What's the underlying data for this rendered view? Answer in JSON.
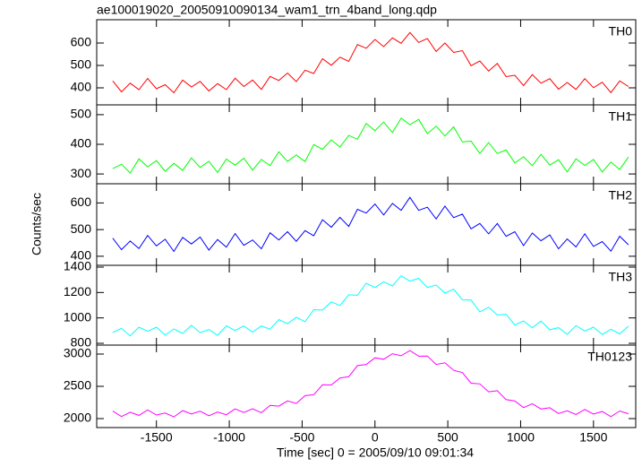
{
  "chart_data": {
    "type": "line",
    "title": "ae100019020_20050910090134_wam1_trn_4band_long.qdp",
    "xlabel": "Time [sec] 0 = 2005/09/10 09:01:34",
    "ylabel": "Counts/sec",
    "xlim": [
      -1910,
      1790
    ],
    "xticks": [
      -1500,
      -1000,
      -500,
      0,
      500,
      1000,
      1500
    ],
    "x": [
      -1800,
      -1740,
      -1680,
      -1620,
      -1560,
      -1500,
      -1440,
      -1380,
      -1320,
      -1260,
      -1200,
      -1140,
      -1080,
      -1020,
      -960,
      -900,
      -840,
      -780,
      -720,
      -660,
      -600,
      -540,
      -480,
      -420,
      -360,
      -300,
      -240,
      -180,
      -120,
      -60,
      0,
      60,
      120,
      180,
      240,
      300,
      360,
      420,
      480,
      540,
      600,
      660,
      720,
      780,
      840,
      900,
      960,
      1020,
      1080,
      1140,
      1200,
      1260,
      1320,
      1380,
      1440,
      1500,
      1560,
      1620,
      1680,
      1740
    ],
    "panels": [
      {
        "name": "TH0",
        "color": "#ff0000",
        "ylim": [
          324,
          704
        ],
        "yticks": [
          400,
          500,
          600
        ],
        "values": [
          431,
          382,
          421,
          392,
          442,
          396,
          414,
          378,
          435,
          404,
          429,
          386,
          419,
          392,
          443,
          406,
          435,
          393,
          451,
          433,
          466,
          428,
          479,
          464,
          530,
          501,
          537,
          518,
          593,
          577,
          616,
          584,
          623,
          599,
          647,
          603,
          620,
          562,
          600,
          558,
          566,
          499,
          520,
          475,
          509,
          450,
          456,
          410,
          459,
          421,
          441,
          394,
          424,
          393,
          441,
          401,
          425,
          379,
          431,
          406
        ]
      },
      {
        "name": "TH1",
        "color": "#00ff00",
        "ylim": [
          267,
          533
        ],
        "yticks": [
          300,
          400,
          500
        ],
        "values": [
          318,
          333,
          303,
          351,
          324,
          345,
          309,
          336,
          312,
          354,
          322,
          343,
          305,
          350,
          330,
          353,
          313,
          349,
          328,
          375,
          342,
          364,
          342,
          399,
          383,
          415,
          391,
          430,
          417,
          470,
          446,
          475,
          440,
          488,
          466,
          484,
          436,
          461,
          428,
          459,
          408,
          411,
          369,
          406,
          369,
          381,
          337,
          358,
          328,
          366,
          330,
          348,
          307,
          351,
          329,
          349,
          307,
          340,
          315,
          357
        ]
      },
      {
        "name": "TH2",
        "color": "#0000ff",
        "ylim": [
          366,
          672
        ],
        "yticks": [
          400,
          500,
          600
        ],
        "values": [
          468,
          425,
          457,
          429,
          478,
          439,
          464,
          418,
          471,
          446,
          472,
          423,
          463,
          434,
          485,
          441,
          461,
          428,
          488,
          461,
          492,
          456,
          496,
          477,
          537,
          509,
          546,
          512,
          576,
          562,
          596,
          555,
          598,
          572,
          621,
          572,
          584,
          540,
          588,
          545,
          558,
          503,
          523,
          484,
          523,
          475,
          492,
          440,
          487,
          458,
          480,
          428,
          465,
          435,
          484,
          437,
          455,
          419,
          475,
          443
        ]
      },
      {
        "name": "TH3",
        "color": "#00ffff",
        "ylim": [
          786,
          1414
        ],
        "yticks": [
          800,
          1000,
          1200,
          1400
        ],
        "values": [
          886,
          918,
          859,
          927,
          895,
          927,
          864,
          914,
          878,
          942,
          884,
          908,
          863,
          938,
          901,
          937,
          888,
          937,
          911,
          987,
          954,
          1005,
          970,
          1065,
          1062,
          1127,
          1098,
          1182,
          1178,
          1273,
          1240,
          1284,
          1252,
          1332,
          1289,
          1312,
          1240,
          1259,
          1195,
          1226,
          1142,
          1140,
          1048,
          1084,
          1023,
          1029,
          944,
          976,
          923,
          975,
          907,
          923,
          871,
          940,
          897,
          927,
          870,
          911,
          874,
          936
        ]
      },
      {
        "name": "TH0123",
        "color": "#ff00ff",
        "ylim": [
          1861,
          3139
        ],
        "yticks": [
          2000,
          2500,
          3000
        ],
        "values": [
          2116,
          2032,
          2098,
          2050,
          2134,
          2056,
          2086,
          2027,
          2124,
          2071,
          2114,
          2045,
          2102,
          2059,
          2150,
          2095,
          2151,
          2091,
          2204,
          2193,
          2273,
          2235,
          2356,
          2370,
          2523,
          2521,
          2629,
          2648,
          2821,
          2839,
          2942,
          2919,
          3005,
          2973,
          3054,
          2967,
          2970,
          2839,
          2864,
          2749,
          2712,
          2549,
          2537,
          2415,
          2432,
          2294,
          2272,
          2169,
          2230,
          2148,
          2168,
          2079,
          2121,
          2064,
          2141,
          2070,
          2110,
          2030,
          2118,
          2075
        ]
      }
    ]
  }
}
